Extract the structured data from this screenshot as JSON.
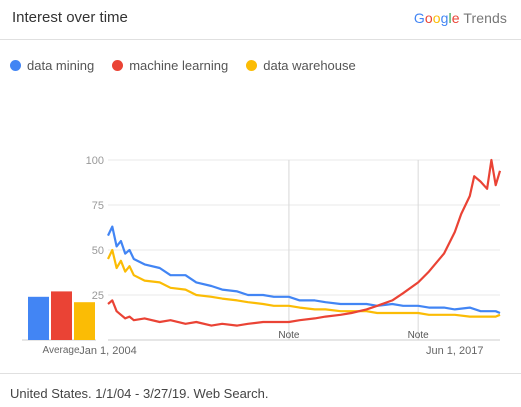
{
  "header": {
    "title": "Interest over time",
    "brand_letters": [
      "G",
      "o",
      "o",
      "g",
      "l",
      "e"
    ],
    "brand_suffix": "Trends"
  },
  "footer": {
    "text": "United States. 1/1/04 - 3/27/19. Web Search."
  },
  "colors": {
    "data_mining": "#4285f4",
    "machine_learning": "#ea4335",
    "data_warehouse": "#fbbc05",
    "grid": "#e8e8e8",
    "axis_text": "#999999"
  },
  "chart_data": {
    "type": "line",
    "ylim": [
      0,
      100
    ],
    "yticks": [
      25,
      50,
      75,
      100
    ],
    "xlim": [
      "2004-01",
      "2019-03"
    ],
    "xtick_labels": [
      {
        "date": "2004-01",
        "label": "Jan 1, 2004"
      },
      {
        "date": "2017-06",
        "label": "Jun 1, 2017"
      }
    ],
    "notes": [
      {
        "date": "2011-01",
        "label": "Note"
      },
      {
        "date": "2016-01",
        "label": "Note"
      }
    ],
    "averages_label": "Average",
    "series": [
      {
        "name": "data mining",
        "color": "#4285f4",
        "average": 24,
        "points": [
          [
            "2004-01",
            58
          ],
          [
            "2004-03",
            63
          ],
          [
            "2004-05",
            52
          ],
          [
            "2004-07",
            55
          ],
          [
            "2004-09",
            48
          ],
          [
            "2004-11",
            50
          ],
          [
            "2005-01",
            45
          ],
          [
            "2005-06",
            42
          ],
          [
            "2006-01",
            40
          ],
          [
            "2006-06",
            36
          ],
          [
            "2007-01",
            36
          ],
          [
            "2007-06",
            32
          ],
          [
            "2008-01",
            30
          ],
          [
            "2008-06",
            28
          ],
          [
            "2009-01",
            27
          ],
          [
            "2009-06",
            25
          ],
          [
            "2010-01",
            25
          ],
          [
            "2010-06",
            24
          ],
          [
            "2011-01",
            24
          ],
          [
            "2011-06",
            22
          ],
          [
            "2012-01",
            22
          ],
          [
            "2012-06",
            21
          ],
          [
            "2013-01",
            20
          ],
          [
            "2013-06",
            20
          ],
          [
            "2014-01",
            20
          ],
          [
            "2014-06",
            19
          ],
          [
            "2015-01",
            20
          ],
          [
            "2015-06",
            19
          ],
          [
            "2016-01",
            19
          ],
          [
            "2016-06",
            18
          ],
          [
            "2017-01",
            18
          ],
          [
            "2017-06",
            17
          ],
          [
            "2018-01",
            18
          ],
          [
            "2018-06",
            16
          ],
          [
            "2019-01",
            16
          ],
          [
            "2019-03",
            15
          ]
        ]
      },
      {
        "name": "machine learning",
        "color": "#ea4335",
        "average": 27,
        "points": [
          [
            "2004-01",
            20
          ],
          [
            "2004-03",
            22
          ],
          [
            "2004-05",
            16
          ],
          [
            "2004-07",
            14
          ],
          [
            "2004-09",
            12
          ],
          [
            "2004-11",
            13
          ],
          [
            "2005-01",
            11
          ],
          [
            "2005-06",
            12
          ],
          [
            "2006-01",
            10
          ],
          [
            "2006-06",
            11
          ],
          [
            "2007-01",
            9
          ],
          [
            "2007-06",
            10
          ],
          [
            "2008-01",
            8
          ],
          [
            "2008-06",
            9
          ],
          [
            "2009-01",
            8
          ],
          [
            "2009-06",
            9
          ],
          [
            "2010-01",
            10
          ],
          [
            "2010-06",
            10
          ],
          [
            "2011-01",
            10
          ],
          [
            "2011-06",
            11
          ],
          [
            "2012-01",
            12
          ],
          [
            "2012-06",
            13
          ],
          [
            "2013-01",
            14
          ],
          [
            "2013-06",
            15
          ],
          [
            "2014-01",
            17
          ],
          [
            "2014-06",
            19
          ],
          [
            "2015-01",
            22
          ],
          [
            "2015-06",
            26
          ],
          [
            "2016-01",
            32
          ],
          [
            "2016-06",
            38
          ],
          [
            "2017-01",
            48
          ],
          [
            "2017-06",
            60
          ],
          [
            "2017-09",
            70
          ],
          [
            "2018-01",
            80
          ],
          [
            "2018-03",
            91
          ],
          [
            "2018-06",
            88
          ],
          [
            "2018-09",
            84
          ],
          [
            "2018-11",
            100
          ],
          [
            "2019-01",
            86
          ],
          [
            "2019-03",
            94
          ]
        ]
      },
      {
        "name": "data warehouse",
        "color": "#fbbc05",
        "average": 21,
        "points": [
          [
            "2004-01",
            45
          ],
          [
            "2004-03",
            50
          ],
          [
            "2004-05",
            40
          ],
          [
            "2004-07",
            44
          ],
          [
            "2004-09",
            38
          ],
          [
            "2004-11",
            41
          ],
          [
            "2005-01",
            36
          ],
          [
            "2005-06",
            33
          ],
          [
            "2006-01",
            32
          ],
          [
            "2006-06",
            29
          ],
          [
            "2007-01",
            28
          ],
          [
            "2007-06",
            25
          ],
          [
            "2008-01",
            24
          ],
          [
            "2008-06",
            23
          ],
          [
            "2009-01",
            22
          ],
          [
            "2009-06",
            21
          ],
          [
            "2010-01",
            20
          ],
          [
            "2010-06",
            19
          ],
          [
            "2011-01",
            19
          ],
          [
            "2011-06",
            18
          ],
          [
            "2012-01",
            17
          ],
          [
            "2012-06",
            17
          ],
          [
            "2013-01",
            16
          ],
          [
            "2013-06",
            16
          ],
          [
            "2014-01",
            16
          ],
          [
            "2014-06",
            15
          ],
          [
            "2015-01",
            15
          ],
          [
            "2015-06",
            15
          ],
          [
            "2016-01",
            15
          ],
          [
            "2016-06",
            14
          ],
          [
            "2017-01",
            14
          ],
          [
            "2017-06",
            14
          ],
          [
            "2018-01",
            13
          ],
          [
            "2018-06",
            13
          ],
          [
            "2019-01",
            13
          ],
          [
            "2019-03",
            14
          ]
        ]
      }
    ]
  }
}
